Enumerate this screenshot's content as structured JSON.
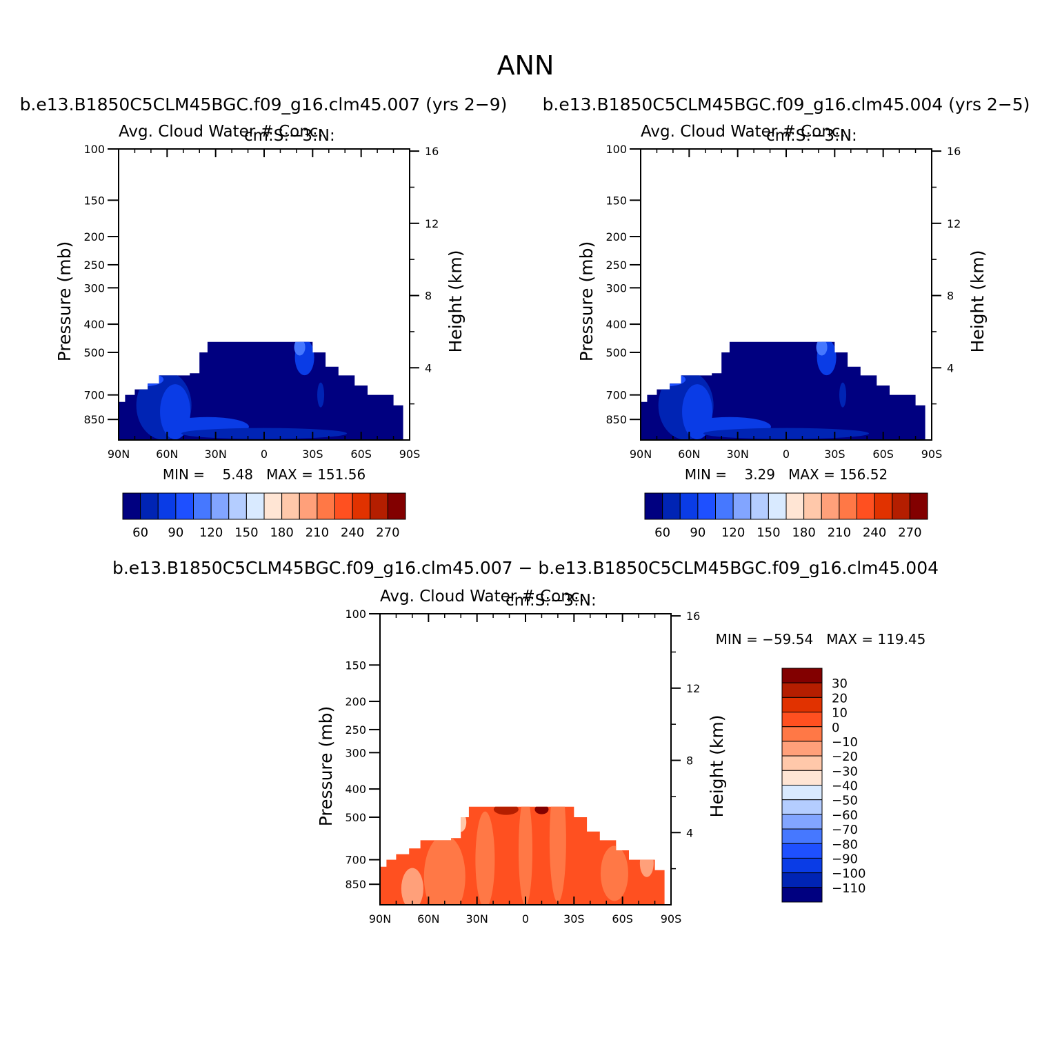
{
  "figure": {
    "title": "ANN"
  },
  "panels": [
    {
      "id": "case1",
      "case_title": "b.e13.B1850C5CLM45BGC.f09_g16.clm45.007 (yrs 2−9)",
      "var_title": "Avg. Cloud Water # Conc.",
      "var_units": "cm:S:−3:N:",
      "left_axis_label": "Pressure (mb)",
      "right_axis_label": "Height (km)",
      "minmax_label": "MIN =    5.48   MAX = 151.56"
    },
    {
      "id": "case2",
      "case_title": "b.e13.B1850C5CLM45BGC.f09_g16.clm45.004 (yrs 2−5)",
      "var_title": "Avg. Cloud Water # Conc.",
      "var_units": "cm:S:−3:N:",
      "left_axis_label": "Pressure (mb)",
      "right_axis_label": "Height (km)",
      "minmax_label": "MIN =    3.29   MAX = 156.52"
    },
    {
      "id": "diff",
      "case_title": "b.e13.B1850C5CLM45BGC.f09_g16.clm45.007 − b.e13.B1850C5CLM45BGC.f09_g16.clm45.004",
      "var_title": "Avg. Cloud Water # Conc.",
      "var_units": "cm:S:−3:N:",
      "left_axis_label": "Pressure (mb)",
      "right_axis_label": "Height (km)",
      "minmax_label": "MIN = −59.54   MAX = 119.45"
    }
  ],
  "chart_data": [
    {
      "type": "heatmap",
      "panel": "case1",
      "x_ticks": [
        "90N",
        "60N",
        "30N",
        "0",
        "30S",
        "60S",
        "90S"
      ],
      "x_values": [
        90,
        60,
        30,
        0,
        -30,
        -60,
        -90
      ],
      "y_left_ticks": [
        100,
        150,
        200,
        250,
        300,
        400,
        500,
        700,
        850
      ],
      "y_right_ticks": [
        16,
        12,
        8,
        4
      ],
      "y_scale": "log",
      "ylim_mb": [
        1000,
        100
      ],
      "min": 5.48,
      "max": 151.56,
      "colorbar_labels": [
        "60",
        "90",
        "120",
        "150",
        "180",
        "210",
        "240",
        "270"
      ],
      "colorbar_orientation": "horizontal",
      "dominant_range": "below 60",
      "filled_top_mb": 460,
      "filled_lat_range": [
        -86,
        90
      ]
    },
    {
      "type": "heatmap",
      "panel": "case2",
      "x_ticks": [
        "90N",
        "60N",
        "30N",
        "0",
        "30S",
        "60S",
        "90S"
      ],
      "x_values": [
        90,
        60,
        30,
        0,
        -30,
        -60,
        -90
      ],
      "y_left_ticks": [
        100,
        150,
        200,
        250,
        300,
        400,
        500,
        700,
        850
      ],
      "y_right_ticks": [
        16,
        12,
        8,
        4
      ],
      "y_scale": "log",
      "ylim_mb": [
        1000,
        100
      ],
      "min": 3.29,
      "max": 156.52,
      "colorbar_labels": [
        "60",
        "90",
        "120",
        "150",
        "180",
        "210",
        "240",
        "270"
      ],
      "colorbar_orientation": "horizontal",
      "dominant_range": "below 60",
      "filled_top_mb": 460,
      "filled_lat_range": [
        -86,
        90
      ]
    },
    {
      "type": "heatmap",
      "panel": "diff",
      "x_ticks": [
        "90N",
        "60N",
        "30N",
        "0",
        "30S",
        "60S",
        "90S"
      ],
      "x_values": [
        90,
        60,
        30,
        0,
        -30,
        -60,
        -90
      ],
      "y_left_ticks": [
        100,
        150,
        200,
        250,
        300,
        400,
        500,
        700,
        850
      ],
      "y_right_ticks": [
        16,
        12,
        8,
        4
      ],
      "y_scale": "log",
      "ylim_mb": [
        1000,
        100
      ],
      "min": -59.54,
      "max": 119.45,
      "colorbar_labels": [
        "30",
        "20",
        "10",
        "0",
        "−10",
        "−20",
        "−30",
        "−40",
        "−50",
        "−60",
        "−70",
        "−80",
        "−90",
        "−100",
        "−110"
      ],
      "colorbar_orientation": "vertical",
      "dominant_range": "0 to 10",
      "filled_top_mb": 460,
      "filled_lat_range": [
        -86,
        90
      ]
    }
  ],
  "colors": {
    "colormap": [
      "#000080",
      "#0024b4",
      "#0a3ce6",
      "#1e50ff",
      "#4678ff",
      "#82a5ff",
      "#b4cdff",
      "#d9eaff",
      "#ffe5d4",
      "#ffc8aa",
      "#ffa07a",
      "#ff7846",
      "#ff5020",
      "#e13200",
      "#b41e00",
      "#820000"
    ]
  }
}
